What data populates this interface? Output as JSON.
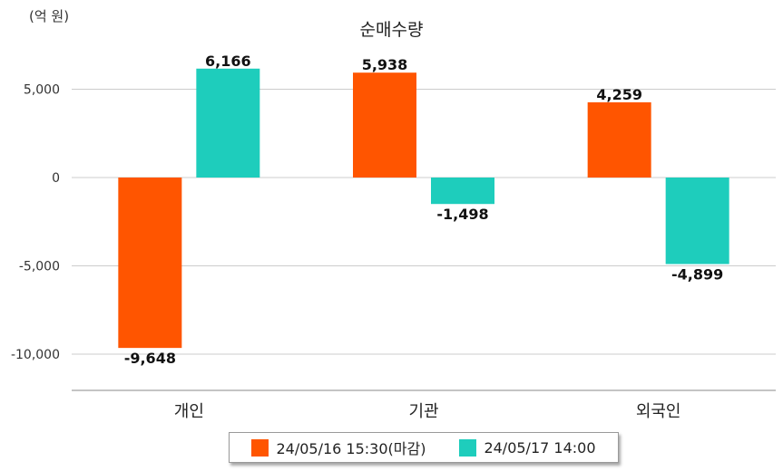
{
  "chart_data": {
    "type": "bar",
    "title": "순매수량",
    "unit": "(억 원)",
    "categories": [
      "개인",
      "기관",
      "외국인"
    ],
    "series": [
      {
        "name": "24/05/16 15:30(마감)",
        "color": "#ff5500",
        "values": [
          -9648,
          5938,
          4259
        ],
        "labels": [
          "-9,648",
          "5,938",
          "4,259"
        ]
      },
      {
        "name": "24/05/17 14:00",
        "color": "#1ecdbc",
        "values": [
          6166,
          -1498,
          -4899
        ],
        "labels": [
          "6,166",
          "-1,498",
          "-4,899"
        ]
      }
    ],
    "yticks": [
      5000,
      0,
      -5000,
      -10000
    ],
    "ytick_labels": [
      "5,000",
      "0",
      "-5,000",
      "-10,000"
    ],
    "ylim": [
      -12000,
      7500
    ],
    "grid": true,
    "legend_position": "bottom"
  }
}
